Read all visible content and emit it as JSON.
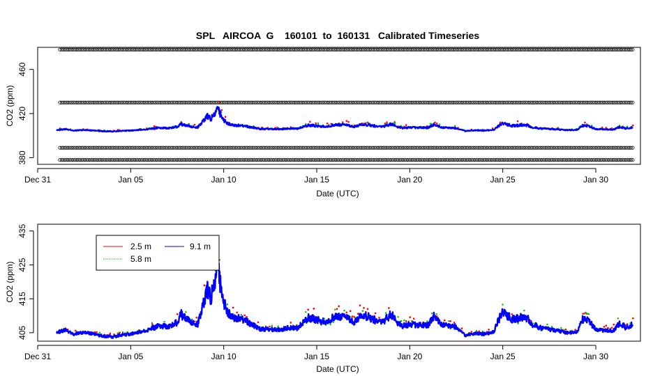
{
  "chart_data": [
    {
      "id": "top",
      "type": "scatter",
      "title": "SPL   AIRCOA  G    160101  to  160131   Calibrated Timeseries",
      "xlabel": "Date (UTC)",
      "ylabel": "CO2 (ppm)",
      "xlim": [
        0,
        32.4
      ],
      "ylim": [
        374,
        480
      ],
      "xtick_values": [
        0,
        5,
        10,
        15,
        20,
        25,
        30
      ],
      "xtick_labels": [
        "Dec 31",
        "Jan 05",
        "Jan 10",
        "Jan 15",
        "Jan 20",
        "Jan 25",
        "Jan 30"
      ],
      "ytick_values": [
        380,
        420,
        460
      ],
      "ytick_labels": [
        "380",
        "420",
        "460"
      ],
      "reference_levels": [
        {
          "name": "calibration-standard-1",
          "value": 478
        },
        {
          "name": "calibration-standard-2",
          "value": 430
        },
        {
          "name": "calibration-standard-3",
          "value": 389
        },
        {
          "name": "calibration-standard-4",
          "value": 378
        }
      ],
      "reference_x_range": [
        1.2,
        32.0
      ],
      "series": [
        {
          "name": "2.5 m",
          "color": "#ff0000"
        },
        {
          "name": "5.8 m",
          "color": "#00c000"
        },
        {
          "name": "9.1 m",
          "color": "#0000ff"
        }
      ]
    },
    {
      "id": "bottom",
      "type": "scatter",
      "title": "",
      "xlabel": "Date (UTC)",
      "ylabel": "CO2 (ppm)",
      "xlim": [
        0,
        32.4
      ],
      "ylim": [
        402.5,
        437
      ],
      "xtick_values": [
        0,
        5,
        10,
        15,
        20,
        25,
        30
      ],
      "xtick_labels": [
        "Dec 31",
        "Jan 05",
        "Jan 10",
        "Jan 15",
        "Jan 20",
        "Jan 25",
        "Jan 30"
      ],
      "ytick_values": [
        405,
        415,
        425,
        435
      ],
      "ytick_labels": [
        "405",
        "415",
        "425",
        "435"
      ],
      "legend": {
        "placement": "top-left",
        "entries": [
          {
            "label": "2.5 m",
            "color": "#ff0000",
            "style": "solid"
          },
          {
            "label": "9.1 m",
            "color": "#0000ff",
            "style": "solid"
          },
          {
            "label": "5.8 m",
            "color": "#00c000",
            "style": "dotted"
          }
        ]
      },
      "series": [
        {
          "name": "2.5 m",
          "color": "#ff0000"
        },
        {
          "name": "5.8 m",
          "color": "#00c000"
        },
        {
          "name": "9.1 m",
          "color": "#0000ff"
        }
      ]
    }
  ],
  "timeseries": {
    "x_start": 1.0,
    "x_end": 32.0,
    "anchors_x": [
      1.0,
      1.5,
      2.0,
      2.5,
      3.0,
      3.5,
      4.0,
      4.5,
      5.0,
      5.5,
      6.0,
      6.5,
      7.0,
      7.5,
      7.7,
      8.0,
      8.3,
      8.6,
      8.9,
      9.1,
      9.3,
      9.5,
      9.7,
      9.9,
      10.2,
      10.5,
      11.0,
      11.5,
      12.0,
      12.5,
      13.0,
      13.5,
      14.0,
      14.3,
      14.6,
      15.0,
      15.5,
      16.0,
      16.5,
      17.0,
      17.5,
      18.0,
      18.5,
      19.0,
      19.3,
      19.6,
      20.0,
      20.5,
      21.0,
      21.3,
      21.6,
      22.0,
      22.5,
      22.8,
      23.0,
      23.5,
      24.0,
      24.5,
      24.8,
      25.0,
      25.5,
      26.0,
      26.3,
      26.6,
      27.0,
      27.5,
      28.0,
      28.5,
      29.0,
      29.3,
      29.6,
      30.0,
      30.5,
      31.0,
      31.3,
      31.6,
      32.0
    ],
    "anchors_y": [
      405.0,
      405.8,
      404.5,
      405.2,
      404.6,
      404.0,
      403.8,
      404.3,
      404.6,
      405.2,
      406.0,
      407.0,
      406.8,
      408.0,
      410.5,
      409.0,
      408.0,
      407.5,
      413.0,
      418.0,
      415.0,
      420.0,
      424.0,
      416.0,
      411.0,
      409.5,
      409.0,
      407.5,
      406.0,
      406.0,
      405.8,
      406.5,
      406.3,
      408.5,
      409.5,
      408.8,
      408.0,
      410.0,
      409.5,
      408.2,
      410.5,
      409.0,
      408.0,
      410.5,
      408.0,
      407.0,
      407.5,
      407.2,
      407.3,
      410.0,
      408.0,
      407.0,
      406.8,
      405.0,
      404.2,
      404.8,
      404.6,
      405.2,
      409.0,
      411.0,
      409.0,
      409.5,
      409.5,
      407.5,
      406.5,
      406.0,
      405.5,
      405.0,
      405.2,
      409.0,
      408.5,
      406.0,
      405.5,
      405.8,
      408.0,
      406.5,
      407.5
    ]
  }
}
